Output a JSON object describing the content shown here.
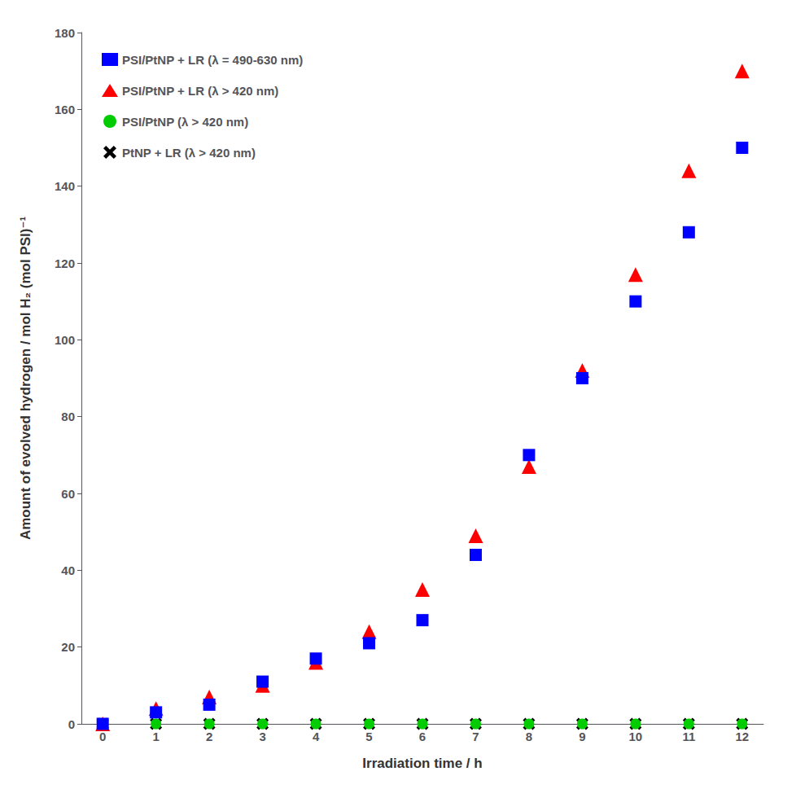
{
  "chart_data": {
    "type": "scatter",
    "xlabel": "Irradiation time / h",
    "ylabel": "Amount of evolved hydrogen / mol H₂ (mol PSI)⁻¹",
    "x": [
      0,
      1,
      2,
      3,
      4,
      5,
      6,
      7,
      8,
      9,
      10,
      11,
      12
    ],
    "series": [
      {
        "name": "PSI/PtNP + LR (λ = 490-630 nm)",
        "color": "#0000FF",
        "marker": "square",
        "values": [
          0,
          3,
          5,
          11,
          17,
          21,
          27,
          44,
          70,
          90,
          110,
          128,
          150
        ]
      },
      {
        "name": "PSI/PtNP + LR (λ > 420 nm)",
        "color": "#FF0000",
        "marker": "triangle",
        "values": [
          0,
          4,
          7,
          10,
          16,
          24,
          35,
          49,
          67,
          92,
          117,
          144,
          170
        ]
      },
      {
        "name": "PSI/PtNP (λ > 420 nm)",
        "color": "#00CC00",
        "marker": "circle",
        "values": [
          0,
          0,
          0,
          0,
          0,
          0,
          0,
          0,
          0,
          0,
          0,
          0,
          0
        ]
      },
      {
        "name": "PtNP + LR (λ > 420 nm)",
        "color": "#000000",
        "marker": "x",
        "values": [
          0,
          0,
          0,
          0,
          0,
          0,
          0,
          0,
          0,
          0,
          0,
          0,
          0
        ]
      }
    ],
    "xlim": [
      -0.4,
      12.4
    ],
    "xticks": [
      0,
      1,
      2,
      3,
      4,
      5,
      6,
      7,
      8,
      9,
      10,
      11,
      12
    ],
    "ylim": [
      0,
      180
    ],
    "yticks": [
      0,
      20,
      40,
      60,
      80,
      100,
      120,
      140,
      160,
      180
    ],
    "grid": false,
    "legend": "upper left"
  }
}
